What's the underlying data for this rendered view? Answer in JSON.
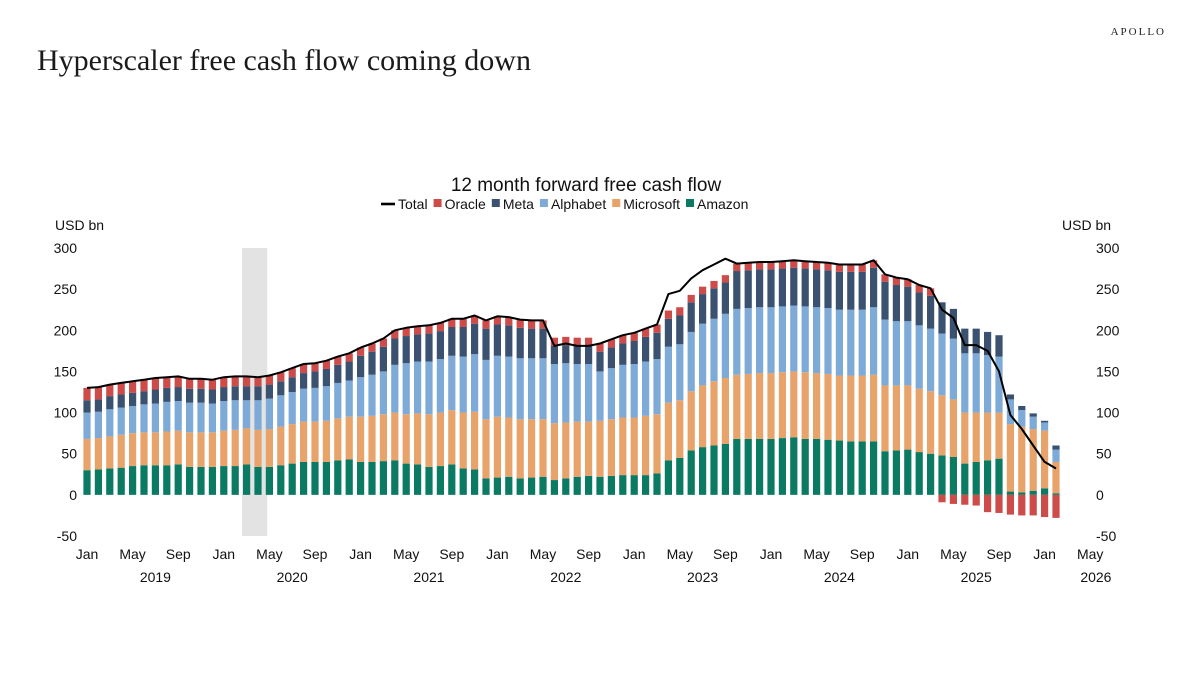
{
  "brand": "APOLLO",
  "headline": "Hyperscaler free cash flow coming down",
  "chart_data": {
    "type": "bar",
    "stacked": true,
    "title": "12 month forward free cash flow",
    "ylabel_left": "USD bn",
    "ylabel_right": "USD bn",
    "ylim": [
      -50,
      300
    ],
    "yticks": [
      -50,
      0,
      50,
      100,
      150,
      200,
      250,
      300
    ],
    "grid": false,
    "legend_position": "top-center",
    "legend": [
      "Total",
      "Oracle",
      "Meta",
      "Alphabet",
      "Microsoft",
      "Amazon"
    ],
    "x_month_ticks": [
      {
        "index": 0,
        "label": "Jan"
      },
      {
        "index": 4,
        "label": "May"
      },
      {
        "index": 8,
        "label": "Sep"
      },
      {
        "index": 12,
        "label": "Jan"
      },
      {
        "index": 16,
        "label": "May"
      },
      {
        "index": 20,
        "label": "Sep"
      },
      {
        "index": 24,
        "label": "Jan"
      },
      {
        "index": 28,
        "label": "May"
      },
      {
        "index": 32,
        "label": "Sep"
      },
      {
        "index": 36,
        "label": "Jan"
      },
      {
        "index": 40,
        "label": "May"
      },
      {
        "index": 44,
        "label": "Sep"
      },
      {
        "index": 48,
        "label": "Jan"
      },
      {
        "index": 52,
        "label": "May"
      },
      {
        "index": 56,
        "label": "Sep"
      },
      {
        "index": 60,
        "label": "Jan"
      },
      {
        "index": 64,
        "label": "May"
      },
      {
        "index": 68,
        "label": "Sep"
      },
      {
        "index": 72,
        "label": "Jan"
      },
      {
        "index": 76,
        "label": "May"
      },
      {
        "index": 80,
        "label": "Sep"
      },
      {
        "index": 84,
        "label": "Jan"
      },
      {
        "index": 88,
        "label": "May"
      }
    ],
    "x_year_labels": [
      {
        "index": 6,
        "label": "2019"
      },
      {
        "index": 18,
        "label": "2020"
      },
      {
        "index": 30,
        "label": "2021"
      },
      {
        "index": 42,
        "label": "2022"
      },
      {
        "index": 54,
        "label": "2023"
      },
      {
        "index": 66,
        "label": "2024"
      },
      {
        "index": 78,
        "label": "2025"
      },
      {
        "index": 88.5,
        "label": "2026"
      }
    ],
    "shaded_period": {
      "start_index": 14,
      "end_index": 15.9,
      "color": "#e2e3e2"
    },
    "series": [
      {
        "name": "Amazon",
        "color": "#0b7a63",
        "values": [
          30,
          31,
          32,
          33,
          35,
          36,
          36,
          36,
          37,
          34,
          34,
          34,
          35,
          35,
          37,
          34,
          34,
          36,
          38,
          40,
          40,
          40,
          42,
          43,
          40,
          40,
          41,
          42,
          38,
          37,
          34,
          35,
          37,
          32,
          31,
          20,
          21,
          22,
          20,
          21,
          22,
          18,
          20,
          22,
          23,
          22,
          23,
          24,
          24,
          24,
          26,
          42,
          45,
          54,
          58,
          60,
          62,
          68,
          68,
          68,
          68,
          69,
          70,
          68,
          68,
          67,
          66,
          65,
          65,
          65,
          53,
          54,
          55,
          52,
          50,
          48,
          46,
          38,
          40,
          42,
          44,
          4,
          3,
          5,
          8,
          2
        ]
      },
      {
        "name": "Microsoft",
        "color": "#e8a36a",
        "values": [
          38,
          38,
          39,
          40,
          40,
          40,
          40,
          41,
          41,
          42,
          42,
          42,
          43,
          44,
          44,
          45,
          46,
          47,
          48,
          49,
          49,
          50,
          51,
          52,
          55,
          56,
          57,
          58,
          60,
          62,
          64,
          65,
          66,
          68,
          70,
          72,
          74,
          72,
          72,
          71,
          70,
          69,
          68,
          67,
          66,
          68,
          69,
          70,
          70,
          72,
          72,
          70,
          70,
          72,
          75,
          78,
          80,
          78,
          79,
          80,
          80,
          80,
          80,
          81,
          80,
          80,
          79,
          80,
          80,
          81,
          80,
          79,
          78,
          77,
          76,
          73,
          70,
          62,
          60,
          58,
          56,
          82,
          80,
          75,
          70,
          38
        ]
      },
      {
        "name": "Alphabet",
        "color": "#7eaad8",
        "values": [
          32,
          32,
          33,
          33,
          33,
          34,
          35,
          36,
          36,
          36,
          36,
          35,
          36,
          36,
          34,
          36,
          37,
          38,
          39,
          40,
          41,
          42,
          43,
          44,
          48,
          50,
          52,
          58,
          62,
          63,
          64,
          65,
          66,
          68,
          70,
          72,
          74,
          74,
          74,
          74,
          74,
          72,
          72,
          70,
          70,
          60,
          62,
          64,
          65,
          66,
          67,
          68,
          68,
          72,
          75,
          76,
          78,
          80,
          80,
          80,
          80,
          80,
          80,
          80,
          80,
          80,
          80,
          80,
          80,
          82,
          80,
          78,
          78,
          77,
          76,
          75,
          74,
          72,
          72,
          70,
          68,
          30,
          20,
          15,
          10,
          15
        ]
      },
      {
        "name": "Meta",
        "color": "#3a5270",
        "values": [
          15,
          15,
          16,
          16,
          16,
          16,
          17,
          17,
          17,
          17,
          17,
          17,
          17,
          17,
          17,
          17,
          17,
          17,
          18,
          19,
          20,
          21,
          22,
          23,
          26,
          28,
          30,
          32,
          33,
          33,
          34,
          34,
          35,
          36,
          37,
          38,
          38,
          38,
          37,
          36,
          36,
          22,
          22,
          22,
          22,
          24,
          25,
          26,
          28,
          30,
          32,
          34,
          35,
          36,
          36,
          37,
          38,
          46,
          46,
          46,
          46,
          46,
          46,
          46,
          46,
          46,
          46,
          46,
          46,
          48,
          46,
          44,
          42,
          40,
          40,
          38,
          36,
          30,
          30,
          28,
          26,
          6,
          5,
          4,
          2,
          5
        ]
      },
      {
        "name": "Oracle",
        "color": "#cd4b48",
        "values": [
          15,
          15,
          14,
          14,
          14,
          14,
          14,
          13,
          13,
          12,
          12,
          12,
          12,
          12,
          12,
          11,
          11,
          11,
          11,
          11,
          10,
          10,
          10,
          10,
          10,
          10,
          10,
          10,
          10,
          10,
          10,
          10,
          10,
          10,
          10,
          10,
          10,
          10,
          10,
          10,
          10,
          10,
          10,
          10,
          10,
          10,
          10,
          10,
          10,
          10,
          10,
          10,
          10,
          9,
          9,
          9,
          9,
          9,
          9,
          9,
          9,
          9,
          9,
          9,
          9,
          9,
          9,
          9,
          9,
          9,
          9,
          9,
          9,
          9,
          9,
          -9,
          -11,
          -12,
          -13,
          -21,
          -22,
          -24,
          -25,
          -25,
          -27,
          -28
        ]
      }
    ],
    "total": [
      130,
      131,
      134,
      136,
      138,
      140,
      142,
      143,
      144,
      141,
      141,
      140,
      143,
      144,
      144,
      143,
      145,
      149,
      154,
      159,
      160,
      163,
      168,
      172,
      179,
      184,
      190,
      200,
      203,
      205,
      206,
      209,
      214,
      214,
      218,
      212,
      217,
      216,
      213,
      212,
      212,
      181,
      184,
      181,
      181,
      184,
      189,
      194,
      197,
      202,
      207,
      244,
      248,
      263,
      273,
      280,
      287,
      281,
      282,
      283,
      283,
      284,
      285,
      284,
      283,
      282,
      280,
      280,
      280,
      285,
      268,
      264,
      262,
      255,
      251,
      225,
      215,
      182,
      182,
      175,
      150,
      97,
      80,
      60,
      40,
      32
    ]
  }
}
